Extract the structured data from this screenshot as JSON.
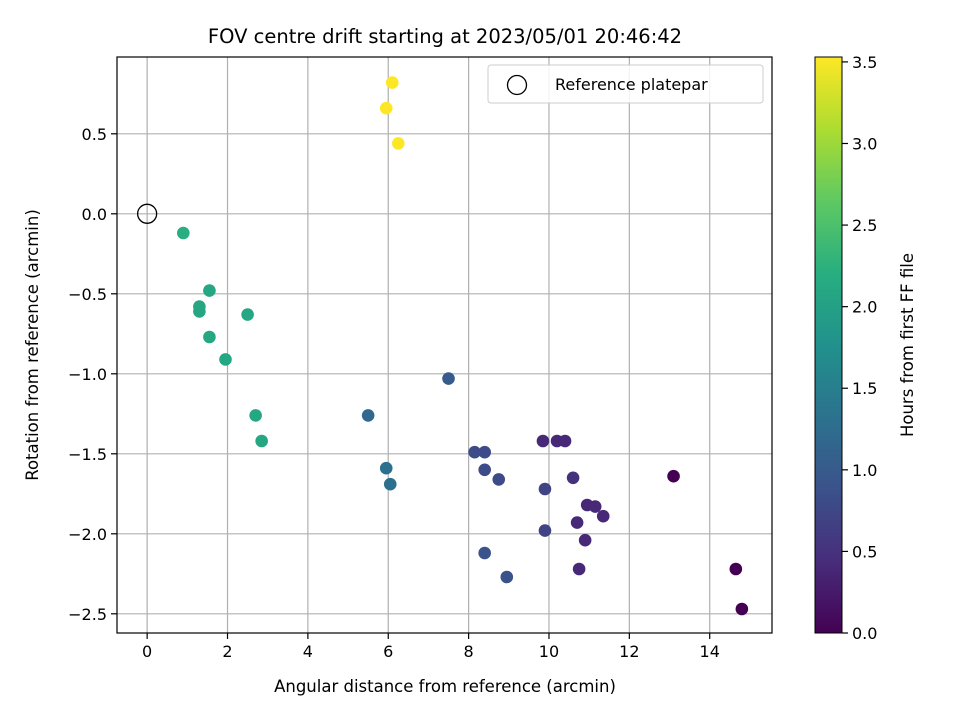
{
  "chart_data": {
    "type": "scatter",
    "title": "FOV centre drift starting at 2023/05/01 20:46:42",
    "xlabel": "Angular distance from reference (arcmin)",
    "ylabel": "Rotation from reference (arcmin)",
    "xlim": [
      -0.75,
      15.55
    ],
    "ylim": [
      -2.62,
      0.98
    ],
    "xticks": [
      0,
      2,
      4,
      6,
      8,
      10,
      12,
      14
    ],
    "yticks": [
      -2.5,
      -2.0,
      -1.5,
      -1.0,
      -0.5,
      0.0,
      0.5
    ],
    "xtick_labels": [
      "0",
      "2",
      "4",
      "6",
      "8",
      "10",
      "12",
      "14"
    ],
    "ytick_labels": [
      "−2.5",
      "−2.0",
      "−1.5",
      "−1.0",
      "−0.5",
      "0.0",
      "0.5"
    ],
    "grid": true,
    "legend": {
      "placement": "top-right",
      "entries": [
        "Reference platepar"
      ]
    },
    "reference": {
      "x": 0,
      "y": 0,
      "marker": "open-circle"
    },
    "colorbar": {
      "label": "Hours from first FF file",
      "colormap": "viridis",
      "range": [
        0.0,
        3.53
      ],
      "ticks": [
        0.0,
        0.5,
        1.0,
        1.5,
        2.0,
        2.5,
        3.0,
        3.5
      ],
      "tick_labels": [
        "0.0",
        "0.5",
        "1.0",
        "1.5",
        "2.0",
        "2.5",
        "3.0",
        "3.5"
      ]
    },
    "points": [
      {
        "x": 13.1,
        "y": -1.64,
        "t": 0.0
      },
      {
        "x": 14.65,
        "y": -2.22,
        "t": 0.0
      },
      {
        "x": 14.8,
        "y": -2.47,
        "t": 0.0
      },
      {
        "x": 10.75,
        "y": -2.22,
        "t": 0.4
      },
      {
        "x": 10.9,
        "y": -2.04,
        "t": 0.4
      },
      {
        "x": 10.7,
        "y": -1.93,
        "t": 0.4
      },
      {
        "x": 10.95,
        "y": -1.82,
        "t": 0.4
      },
      {
        "x": 11.15,
        "y": -1.83,
        "t": 0.4
      },
      {
        "x": 11.35,
        "y": -1.89,
        "t": 0.4
      },
      {
        "x": 9.85,
        "y": -1.42,
        "t": 0.4
      },
      {
        "x": 10.2,
        "y": -1.42,
        "t": 0.4
      },
      {
        "x": 10.4,
        "y": -1.42,
        "t": 0.4
      },
      {
        "x": 10.6,
        "y": -1.65,
        "t": 0.5
      },
      {
        "x": 9.9,
        "y": -1.72,
        "t": 0.7
      },
      {
        "x": 9.9,
        "y": -1.98,
        "t": 0.7
      },
      {
        "x": 8.4,
        "y": -1.49,
        "t": 0.8
      },
      {
        "x": 8.15,
        "y": -1.49,
        "t": 0.8
      },
      {
        "x": 8.4,
        "y": -1.6,
        "t": 0.8
      },
      {
        "x": 8.75,
        "y": -1.66,
        "t": 0.8
      },
      {
        "x": 8.4,
        "y": -2.12,
        "t": 0.9
      },
      {
        "x": 8.95,
        "y": -2.27,
        "t": 0.9
      },
      {
        "x": 7.5,
        "y": -1.03,
        "t": 1.0
      },
      {
        "x": 5.5,
        "y": -1.26,
        "t": 1.2
      },
      {
        "x": 5.95,
        "y": -1.59,
        "t": 1.3
      },
      {
        "x": 6.05,
        "y": -1.69,
        "t": 1.3
      },
      {
        "x": 2.85,
        "y": -1.42,
        "t": 2.1
      },
      {
        "x": 2.7,
        "y": -1.26,
        "t": 2.1
      },
      {
        "x": 2.5,
        "y": -0.63,
        "t": 2.1
      },
      {
        "x": 1.95,
        "y": -0.91,
        "t": 2.1
      },
      {
        "x": 1.55,
        "y": -0.77,
        "t": 2.1
      },
      {
        "x": 1.55,
        "y": -0.48,
        "t": 2.1
      },
      {
        "x": 1.3,
        "y": -0.58,
        "t": 2.1
      },
      {
        "x": 1.3,
        "y": -0.61,
        "t": 2.1
      },
      {
        "x": 0.9,
        "y": -0.12,
        "t": 2.2
      },
      {
        "x": 6.1,
        "y": 0.82,
        "t": 3.53
      },
      {
        "x": 5.95,
        "y": 0.66,
        "t": 3.53
      },
      {
        "x": 6.25,
        "y": 0.44,
        "t": 3.53
      }
    ]
  }
}
